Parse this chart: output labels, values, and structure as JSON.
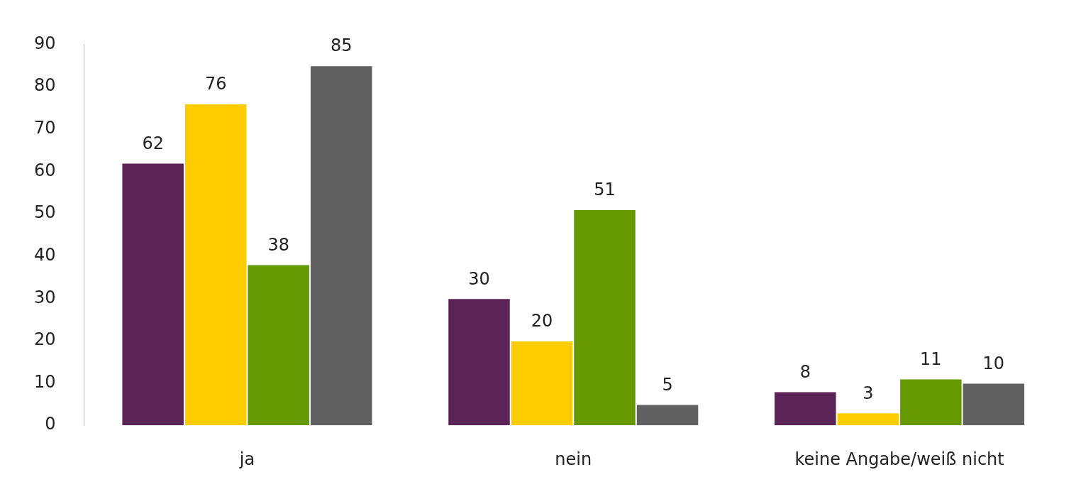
{
  "chart_data": {
    "type": "bar",
    "categories": [
      "ja",
      "nein",
      "keine Angabe/weiß nicht"
    ],
    "series": [
      {
        "color": "#5c2456",
        "values": [
          62,
          30,
          8
        ]
      },
      {
        "color": "#ffcc00",
        "values": [
          76,
          20,
          3
        ]
      },
      {
        "color": "#669900",
        "values": [
          38,
          51,
          11
        ]
      },
      {
        "color": "#606060",
        "values": [
          85,
          5,
          10
        ]
      }
    ],
    "ylim": [
      0,
      90
    ],
    "yticks": [
      0,
      10,
      20,
      30,
      40,
      50,
      60,
      70,
      80,
      90
    ],
    "grid": false,
    "legend": false,
    "data_labels": true
  }
}
